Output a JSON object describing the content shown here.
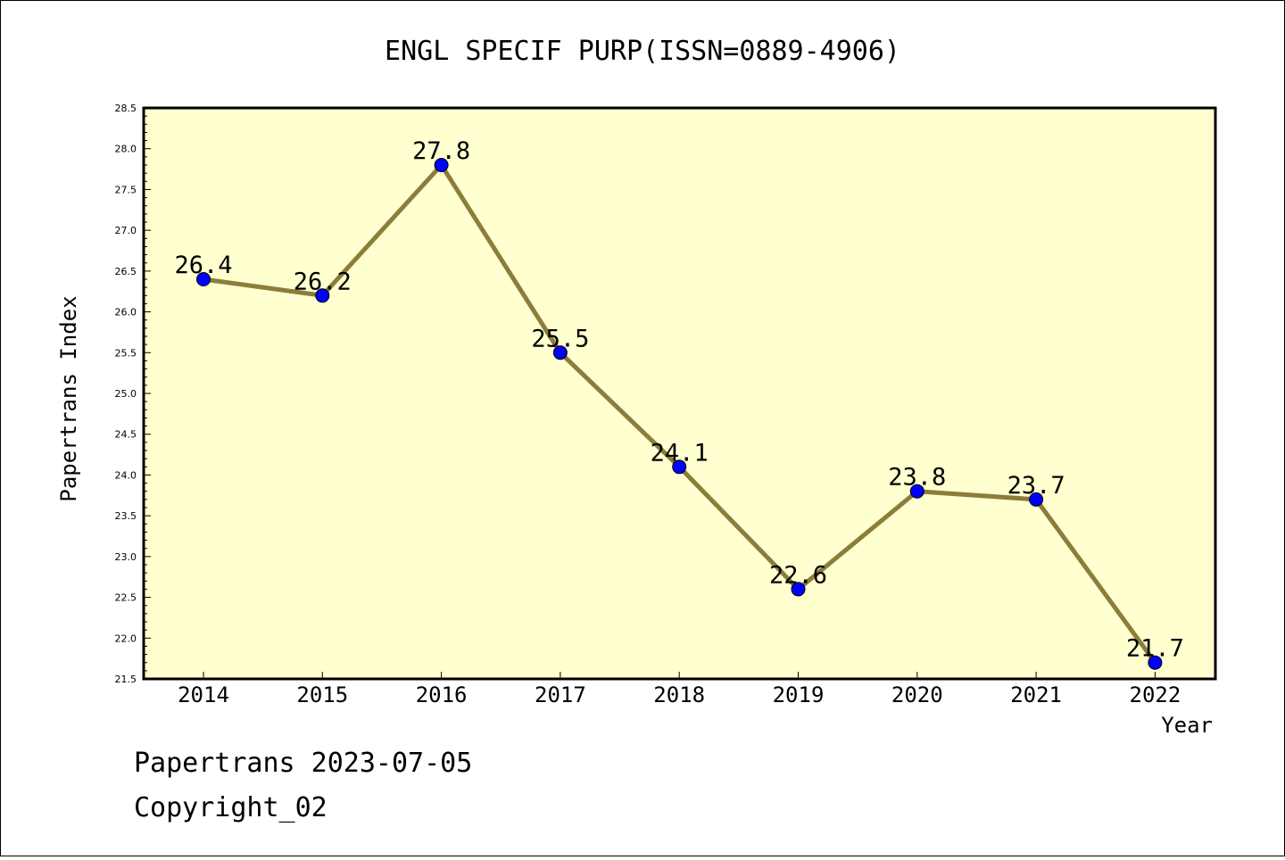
{
  "chart_data": {
    "type": "line",
    "title": "ENGL SPECIF PURP(ISSN=0889-4906)",
    "xlabel": "Year",
    "ylabel": "Papertrans Index",
    "categories": [
      "2014",
      "2015",
      "2016",
      "2017",
      "2018",
      "2019",
      "2020",
      "2021",
      "2022"
    ],
    "series": [
      {
        "values": [
          26.4,
          26.2,
          27.8,
          25.5,
          24.1,
          22.6,
          23.8,
          23.7,
          21.7
        ],
        "data_labels": [
          "26.4",
          "26.2",
          "27.8",
          "25.5",
          "24.1",
          "22.6",
          "23.8",
          "23.7",
          "21.7"
        ]
      }
    ],
    "ylim": [
      21.5,
      28.5
    ],
    "yticks": [
      "21.5",
      "22.0",
      "22.5",
      "23.0",
      "23.5",
      "24.0",
      "24.5",
      "25.0",
      "25.5",
      "26.0",
      "26.5",
      "27.0",
      "27.5",
      "28.0",
      "28.5"
    ],
    "grid": false,
    "colors": {
      "plot_background": "#FFFFD0",
      "line": "#8B7D3A",
      "marker": "#0000FF"
    }
  },
  "footer": {
    "line1": "Papertrans 2023-07-05",
    "line2": "Copyright_02"
  }
}
